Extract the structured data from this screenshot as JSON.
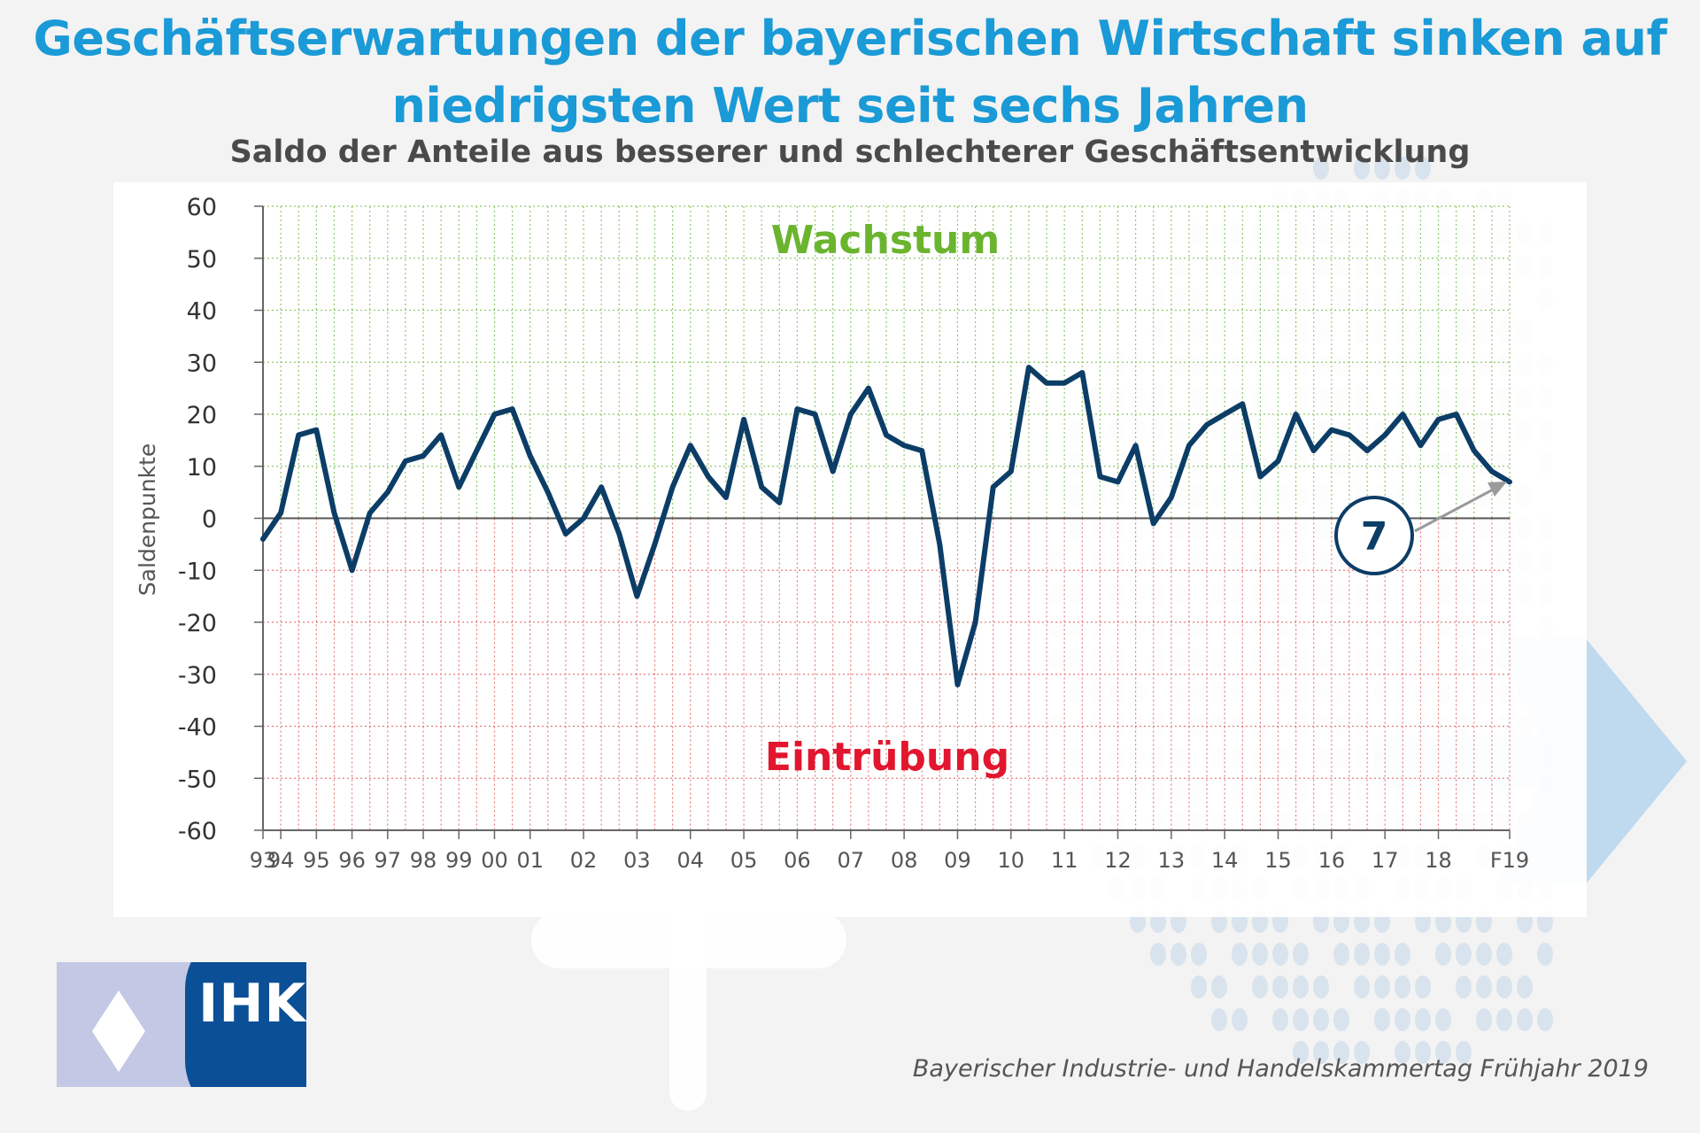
{
  "title_line1": "Geschäftserwartungen der bayerischen Wirtschaft sinken auf",
  "title_line2": "niedrigsten Wert seit sechs Jahren",
  "subtitle": "Saldo der Anteile aus besserer und schlechterer Geschäftsentwicklung",
  "source": "Bayerischer Industrie- und Handelskammertag Frühjahr 2019",
  "logo": {
    "text": "IHK",
    "icon": "ihk-diamond-icon"
  },
  "colors": {
    "title": "#1a9ad6",
    "line": "#0c3d66",
    "growth": "#6ab42e",
    "decline": "#e2162e",
    "grid_positive": "#8fca6a",
    "grid_negative": "#e97a7a"
  },
  "chart_data": {
    "type": "line",
    "ylabel": "Saldenpunkte",
    "ylim": [
      -60,
      60
    ],
    "yticks": [
      60,
      50,
      40,
      30,
      20,
      10,
      0,
      -10,
      -20,
      -30,
      -40,
      -50,
      -60
    ],
    "xticks": [
      "93",
      "94",
      "95",
      "96",
      "97",
      "98",
      "99",
      "00",
      "01",
      "02",
      "03",
      "04",
      "05",
      "06",
      "07",
      "08",
      "09",
      "10",
      "11",
      "12",
      "13",
      "14",
      "15",
      "16",
      "17",
      "18",
      "F19"
    ],
    "growth_label": "Wachstum",
    "decline_label": "Eintrübung",
    "grid": true,
    "latest_value_label": "7",
    "series": [
      {
        "values": [
          -4,
          1,
          16,
          17,
          1,
          -10,
          1,
          5,
          11,
          12,
          16,
          6,
          13,
          20,
          21,
          12,
          5,
          -3,
          0,
          6,
          -3,
          -15,
          -5,
          6,
          14,
          8,
          4,
          19,
          6,
          3,
          21,
          20,
          9,
          20,
          25,
          16,
          14,
          13,
          -5,
          -32,
          -20,
          6,
          9,
          29,
          26,
          26,
          28,
          8,
          7,
          14,
          -1,
          4,
          14,
          18,
          20,
          22,
          8,
          11,
          20,
          13,
          17,
          16,
          13,
          16,
          20,
          14,
          19,
          20,
          13,
          9,
          7
        ]
      }
    ]
  }
}
